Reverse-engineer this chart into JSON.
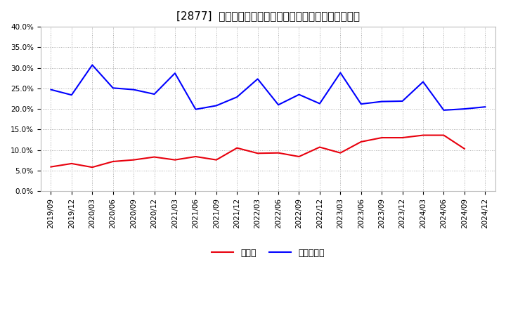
{
  "title": "[2877]  現預金、有利子負債の総資産に対する比率の推移",
  "ylim": [
    0.0,
    0.4
  ],
  "yticks": [
    0.0,
    0.05,
    0.1,
    0.15,
    0.2,
    0.25,
    0.3,
    0.35,
    0.4
  ],
  "x_labels": [
    "2019/09",
    "2019/12",
    "2020/03",
    "2020/06",
    "2020/09",
    "2020/12",
    "2021/03",
    "2021/06",
    "2021/09",
    "2021/12",
    "2022/03",
    "2022/06",
    "2022/09",
    "2022/12",
    "2023/03",
    "2023/06",
    "2023/09",
    "2023/12",
    "2024/03",
    "2024/06",
    "2024/09",
    "2024/12"
  ],
  "cash": [
    0.059,
    0.067,
    0.058,
    0.072,
    0.076,
    0.083,
    0.076,
    0.084,
    0.076,
    0.105,
    0.092,
    0.093,
    0.084,
    0.107,
    0.093,
    0.12,
    0.13,
    0.13,
    0.136,
    0.136,
    0.103,
    null
  ],
  "debt": [
    0.247,
    0.234,
    0.307,
    0.251,
    0.247,
    0.236,
    0.287,
    0.199,
    0.208,
    0.229,
    0.273,
    0.21,
    0.235,
    0.213,
    0.288,
    0.212,
    0.218,
    0.219,
    0.266,
    0.197,
    0.2,
    0.205
  ],
  "cash_color": "#e8000d",
  "debt_color": "#0000ff",
  "bg_color": "#ffffff",
  "grid_color": "#aaaaaa",
  "title_fontsize": 11,
  "tick_fontsize": 7.5,
  "legend_fontsize": 9,
  "cash_label": "現預金",
  "debt_label": "有利子負債"
}
